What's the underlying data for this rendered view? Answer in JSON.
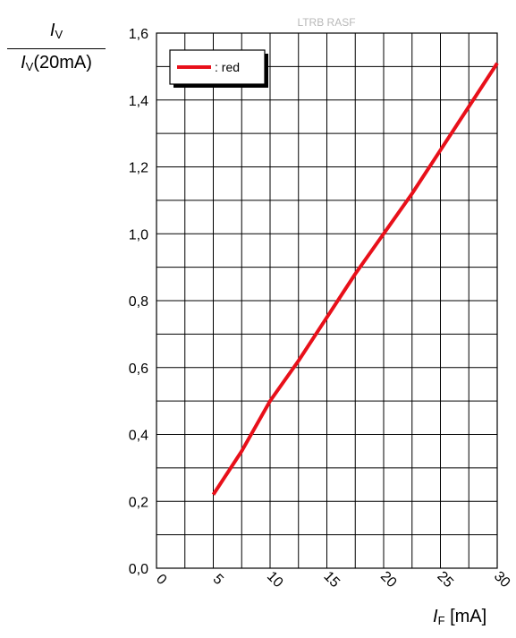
{
  "chart_data": {
    "type": "line",
    "title": "LTRB RASF",
    "xlabel": {
      "symbol": "I",
      "subscript": "F",
      "unit": " [mA]"
    },
    "ylabel": {
      "numerator_symbol": "I",
      "numerator_subscript": "V",
      "denominator_symbol": "I",
      "denominator_subscript": "V",
      "denominator_tail": "(20mA)"
    },
    "xlim": [
      0,
      30
    ],
    "ylim": [
      0,
      1.6
    ],
    "x_ticks": [
      "0",
      "5",
      "10",
      "15",
      "20",
      "25",
      "30"
    ],
    "y_ticks": [
      "0,0",
      "0,2",
      "0,4",
      "0,6",
      "0,8",
      "1,0",
      "1,2",
      "1,4",
      "1,6"
    ],
    "grid": true,
    "legend_position": "top-left",
    "series": [
      {
        "name": ": red",
        "color": "#e8101a",
        "x": [
          5,
          7.5,
          10,
          12.5,
          15,
          17.5,
          20,
          22.5,
          25,
          27.5,
          30
        ],
        "y": [
          0.22,
          0.35,
          0.5,
          0.62,
          0.75,
          0.88,
          1.0,
          1.12,
          1.25,
          1.38,
          1.51
        ]
      }
    ]
  }
}
